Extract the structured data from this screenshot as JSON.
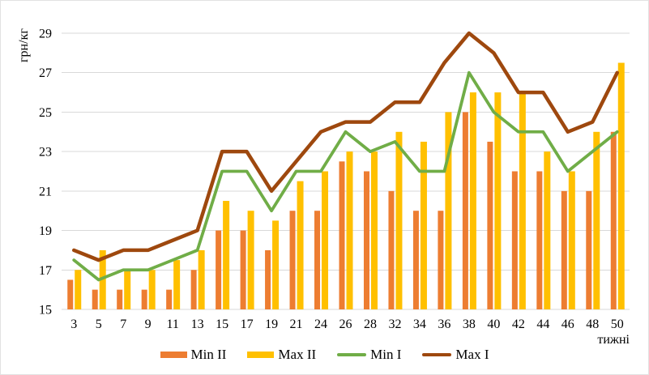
{
  "chart": {
    "y_axis_title": "грн/кг",
    "x_axis_title": "тижні",
    "grid_color": "#d9d9d9",
    "text_color": "#000000",
    "background": "#ffffff"
  },
  "chart_data": {
    "type": "bar",
    "subtype": "combo-bar-line",
    "title": "",
    "ylabel": "грн/кг",
    "xlabel": "тижні",
    "ylim": [
      15,
      29
    ],
    "yticks": [
      15,
      17,
      19,
      21,
      23,
      25,
      27,
      29
    ],
    "grid": true,
    "legend_position": "bottom",
    "categories": [
      3,
      5,
      7,
      9,
      11,
      13,
      15,
      17,
      19,
      21,
      24,
      26,
      28,
      32,
      34,
      36,
      38,
      40,
      42,
      44,
      46,
      48,
      50
    ],
    "series": [
      {
        "name": "Min II",
        "kind": "bar",
        "color": "#ED7D31",
        "values": [
          16.5,
          16,
          16,
          16,
          16,
          17,
          19,
          19,
          18,
          20,
          20,
          22.5,
          22,
          21,
          20,
          20,
          25,
          23.5,
          22,
          22,
          21,
          21,
          24
        ]
      },
      {
        "name": "Max II",
        "kind": "bar",
        "color": "#FFC000",
        "values": [
          17,
          18,
          17,
          17,
          17.5,
          18,
          20.5,
          20,
          19.5,
          21.5,
          22,
          23,
          23,
          24,
          23.5,
          25,
          26,
          26,
          26,
          23,
          22,
          24,
          27.5
        ]
      },
      {
        "name": "Min I",
        "kind": "line",
        "color": "#70AD47",
        "values": [
          17.5,
          16.5,
          17,
          17,
          17.5,
          18,
          22,
          22,
          20,
          22,
          22,
          24,
          23,
          23.5,
          22,
          22,
          27,
          25,
          24,
          24,
          22,
          23,
          24
        ]
      },
      {
        "name": "Max I",
        "kind": "line",
        "color": "#9E480E",
        "values": [
          18,
          17.5,
          18,
          18,
          18.5,
          19,
          23,
          23,
          21,
          22.5,
          24,
          24.5,
          24.5,
          25.5,
          25.5,
          27.5,
          29,
          28,
          26,
          26,
          24,
          24.5,
          27
        ]
      }
    ]
  }
}
